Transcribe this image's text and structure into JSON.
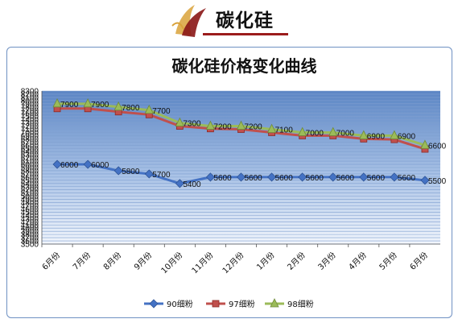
{
  "header": {
    "logo_text": "碳化硅",
    "logo_color": "#9b1c1c"
  },
  "chart_data": {
    "type": "line",
    "title": "碳化硅价格变化曲线",
    "categories": [
      "6月份",
      "7月份",
      "8月份",
      "9月份",
      "10月份",
      "11月份",
      "12月份",
      "1月份",
      "2月份",
      "3月份",
      "4月份",
      "5月份",
      "6月份"
    ],
    "ylim": [
      3500,
      8300
    ],
    "ytick_step": 100,
    "grid": true,
    "legend": "bottom",
    "series": [
      {
        "name": "90细粉",
        "color": "#4472c4",
        "marker": "diamond",
        "values": [
          6000,
          6000,
          5800,
          5700,
          5400,
          5600,
          5600,
          5600,
          5600,
          5600,
          5600,
          5600,
          5500
        ],
        "labels": [
          "6000",
          "6000",
          "5800",
          "5700",
          "5400",
          "5600",
          "5600",
          "5600",
          "5600",
          "5600",
          "5600",
          "5600",
          "5500"
        ]
      },
      {
        "name": "97细粉",
        "color": "#c0504d",
        "marker": "square",
        "values": [
          7750,
          7750,
          7650,
          7560,
          7200,
          7120,
          7100,
          7000,
          6900,
          6900,
          6800,
          6780,
          6480
        ],
        "labels": [
          null,
          null,
          null,
          null,
          null,
          null,
          null,
          null,
          null,
          null,
          null,
          null,
          null
        ]
      },
      {
        "name": "98细粉",
        "color": "#9bbb59",
        "marker": "triangle",
        "values": [
          7900,
          7900,
          7800,
          7700,
          7300,
          7200,
          7200,
          7100,
          7000,
          7000,
          6900,
          6900,
          6600
        ],
        "labels": [
          "7900",
          "7900",
          "7800",
          "7700",
          "7300",
          "7200",
          "7200",
          "7100",
          "7000",
          "7000",
          "6900",
          "6900",
          "6600"
        ]
      }
    ]
  }
}
